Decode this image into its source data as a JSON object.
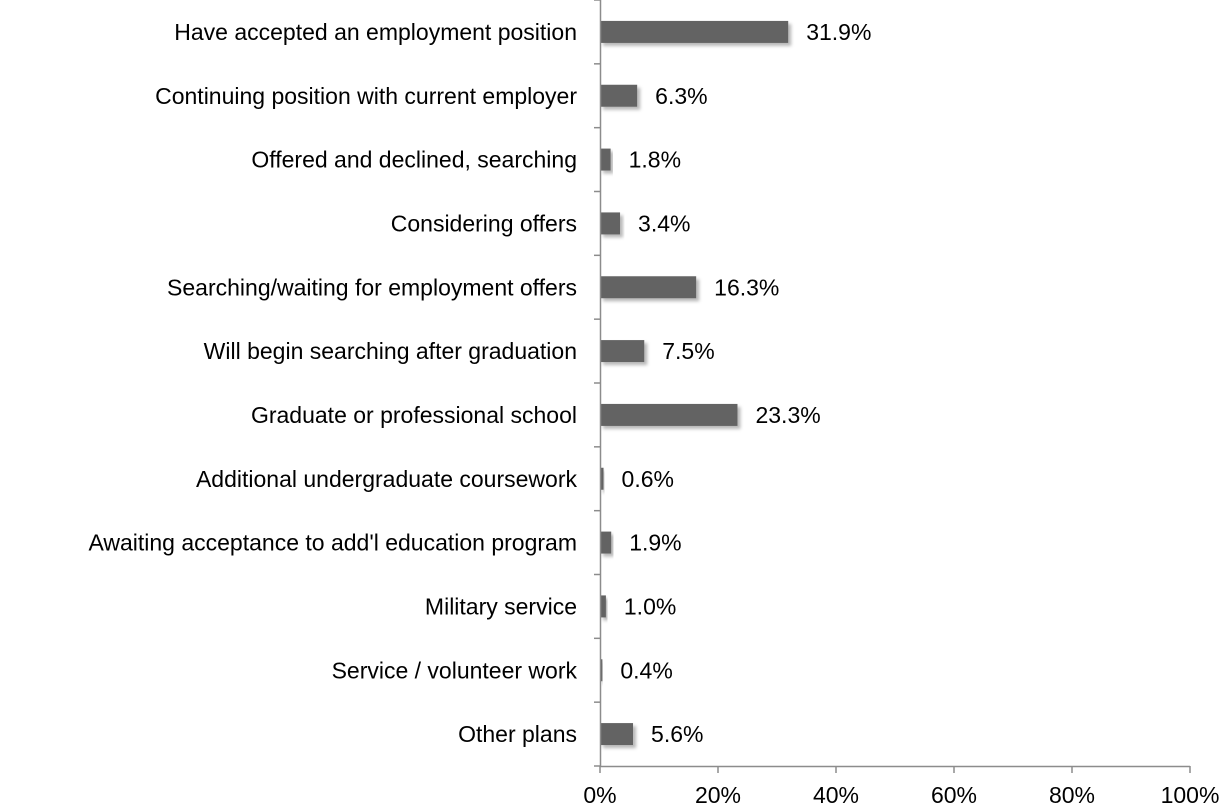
{
  "chart_data": {
    "type": "bar",
    "orientation": "horizontal",
    "title": "",
    "xlabel": "",
    "ylabel": "",
    "categories": [
      "Have accepted an employment position",
      "Continuing position with current employer",
      "Offered and declined, searching",
      "Considering offers",
      "Searching/waiting for employment offers",
      "Will begin searching after graduation",
      "Graduate or professional school",
      "Additional undergraduate coursework",
      "Awaiting acceptance to add'l education program",
      "Military service",
      "Service / volunteer work",
      "Other plans"
    ],
    "values": [
      31.9,
      6.3,
      1.8,
      3.4,
      16.3,
      7.5,
      23.3,
      0.6,
      1.9,
      1.0,
      0.4,
      5.6
    ],
    "value_labels": [
      "31.9%",
      "6.3%",
      "1.8%",
      "3.4%",
      "16.3%",
      "7.5%",
      "23.3%",
      "0.6%",
      "1.9%",
      "1.0%",
      "0.4%",
      "5.6%"
    ],
    "xlim": [
      0,
      100
    ],
    "x_ticks": [
      "0%",
      "20%",
      "40%",
      "60%",
      "80%",
      "100%"
    ],
    "grid": false,
    "legend": "none",
    "bar_color": "#636363",
    "axis_color": "#8c8c8c"
  }
}
